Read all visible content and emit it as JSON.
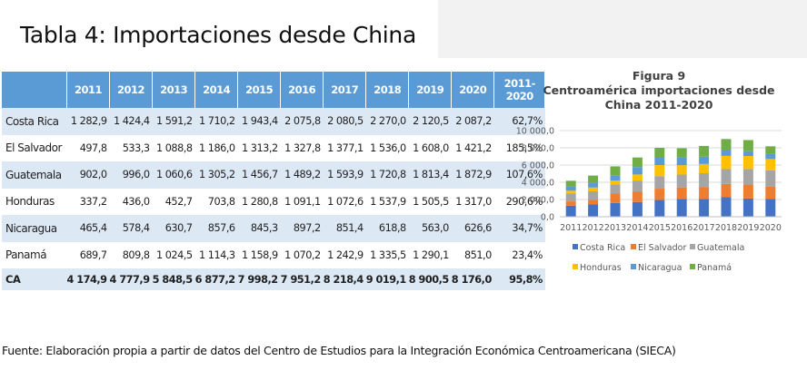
{
  "page": {
    "title": "Tabla 4: Importaciones desde China",
    "source": "Fuente: Elaboración propia a partir de datos del Centro de Estudios para la Integración Económica Centroamericana (SIECA)"
  },
  "table": {
    "headers": [
      "",
      "2011",
      "2012",
      "2013",
      "2014",
      "2015",
      "2016",
      "2017",
      "2018",
      "2019",
      "2020"
    ],
    "last_header": [
      "2011-",
      "2020"
    ],
    "rows": [
      {
        "country": "Costa Rica",
        "values": [
          "1 282,9",
          "1 424,4",
          "1 591,2",
          "1 710,2",
          "1 943,4",
          "2 075,8",
          "2 080,5",
          "2 270,0",
          "2 120,5",
          "2 087,2"
        ],
        "change": "62,7%"
      },
      {
        "country": "El Salvador",
        "values": [
          "497,8",
          "533,3",
          "1 088,8",
          "1 186,0",
          "1 313,2",
          "1 327,8",
          "1 377,1",
          "1 536,0",
          "1 608,0",
          "1 421,2"
        ],
        "change": "185,5%"
      },
      {
        "country": "Guatemala",
        "values": [
          "902,0",
          "996,0",
          "1 060,6",
          "1 305,2",
          "1 456,7",
          "1 489,2",
          "1 593,9",
          "1 720,8",
          "1 813,4",
          "1 872,9"
        ],
        "change": "107,6%"
      },
      {
        "country": "Honduras",
        "values": [
          "337,2",
          "436,0",
          "452,7",
          "703,8",
          "1 280,8",
          "1 091,1",
          "1 072,6",
          "1 537,9",
          "1 505,5",
          "1 317,0"
        ],
        "change": "290,6%"
      },
      {
        "country": "Nicaragua",
        "values": [
          "465,4",
          "578,4",
          "630,7",
          "857,6",
          "845,3",
          "897,2",
          "851,4",
          "618,8",
          "563,0",
          "626,6"
        ],
        "change": "34,7%"
      },
      {
        "country": "Panamá",
        "values": [
          "689,7",
          "809,8",
          "1 024,5",
          "1 114,3",
          "1 158,9",
          "1 070,2",
          "1 242,9",
          "1 335,5",
          "1 290,1",
          "851,0"
        ],
        "change": "23,4%"
      }
    ],
    "total": {
      "country": "CA",
      "values": [
        "4 174,9",
        "4 777,9",
        "5 848,5",
        "6 877,2",
        "7 998,2",
        "7 951,2",
        "8 218,4",
        "9 019,1",
        "8 900,5",
        "8 176,0"
      ],
      "change": "95,8%"
    }
  },
  "chart_data": {
    "type": "bar",
    "stacked": true,
    "title_lines": [
      "Figura 9",
      "Centroamérica importaciones desde",
      "China 2011-2020"
    ],
    "categories": [
      "2011",
      "2012",
      "2013",
      "2014",
      "2015",
      "2016",
      "2017",
      "2018",
      "2019",
      "2020"
    ],
    "y_ticks": [
      "0,0",
      "2 000,0",
      "4 000,0",
      "6 000,0",
      "8 000,0",
      "10 000,0"
    ],
    "ylim": [
      0,
      10000
    ],
    "grid": true,
    "legend_position": "bottom",
    "series": [
      {
        "name": "Costa Rica",
        "color": "#4472c4",
        "values": [
          1282.9,
          1424.4,
          1591.2,
          1710.2,
          1943.4,
          2075.8,
          2080.5,
          2270.0,
          2120.5,
          2087.2
        ]
      },
      {
        "name": "El Salvador",
        "color": "#ed7d31",
        "values": [
          497.8,
          533.3,
          1088.8,
          1186.0,
          1313.2,
          1327.8,
          1377.1,
          1536.0,
          1608.0,
          1421.2
        ]
      },
      {
        "name": "Guatemala",
        "color": "#a5a5a5",
        "values": [
          902.0,
          996.0,
          1060.6,
          1305.2,
          1456.7,
          1489.2,
          1593.9,
          1720.8,
          1813.4,
          1872.9
        ]
      },
      {
        "name": "Honduras",
        "color": "#ffc000",
        "values": [
          337.2,
          436.0,
          452.7,
          703.8,
          1280.8,
          1091.1,
          1072.6,
          1537.9,
          1505.5,
          1317.0
        ]
      },
      {
        "name": "Nicaragua",
        "color": "#5b9bd5",
        "values": [
          465.4,
          578.4,
          630.7,
          857.6,
          845.3,
          897.2,
          851.4,
          618.8,
          563.0,
          626.6
        ]
      },
      {
        "name": "Panamá",
        "color": "#70ad47",
        "values": [
          689.7,
          809.8,
          1024.5,
          1114.3,
          1158.9,
          1070.2,
          1242.9,
          1335.5,
          1290.1,
          851.0
        ]
      }
    ]
  }
}
